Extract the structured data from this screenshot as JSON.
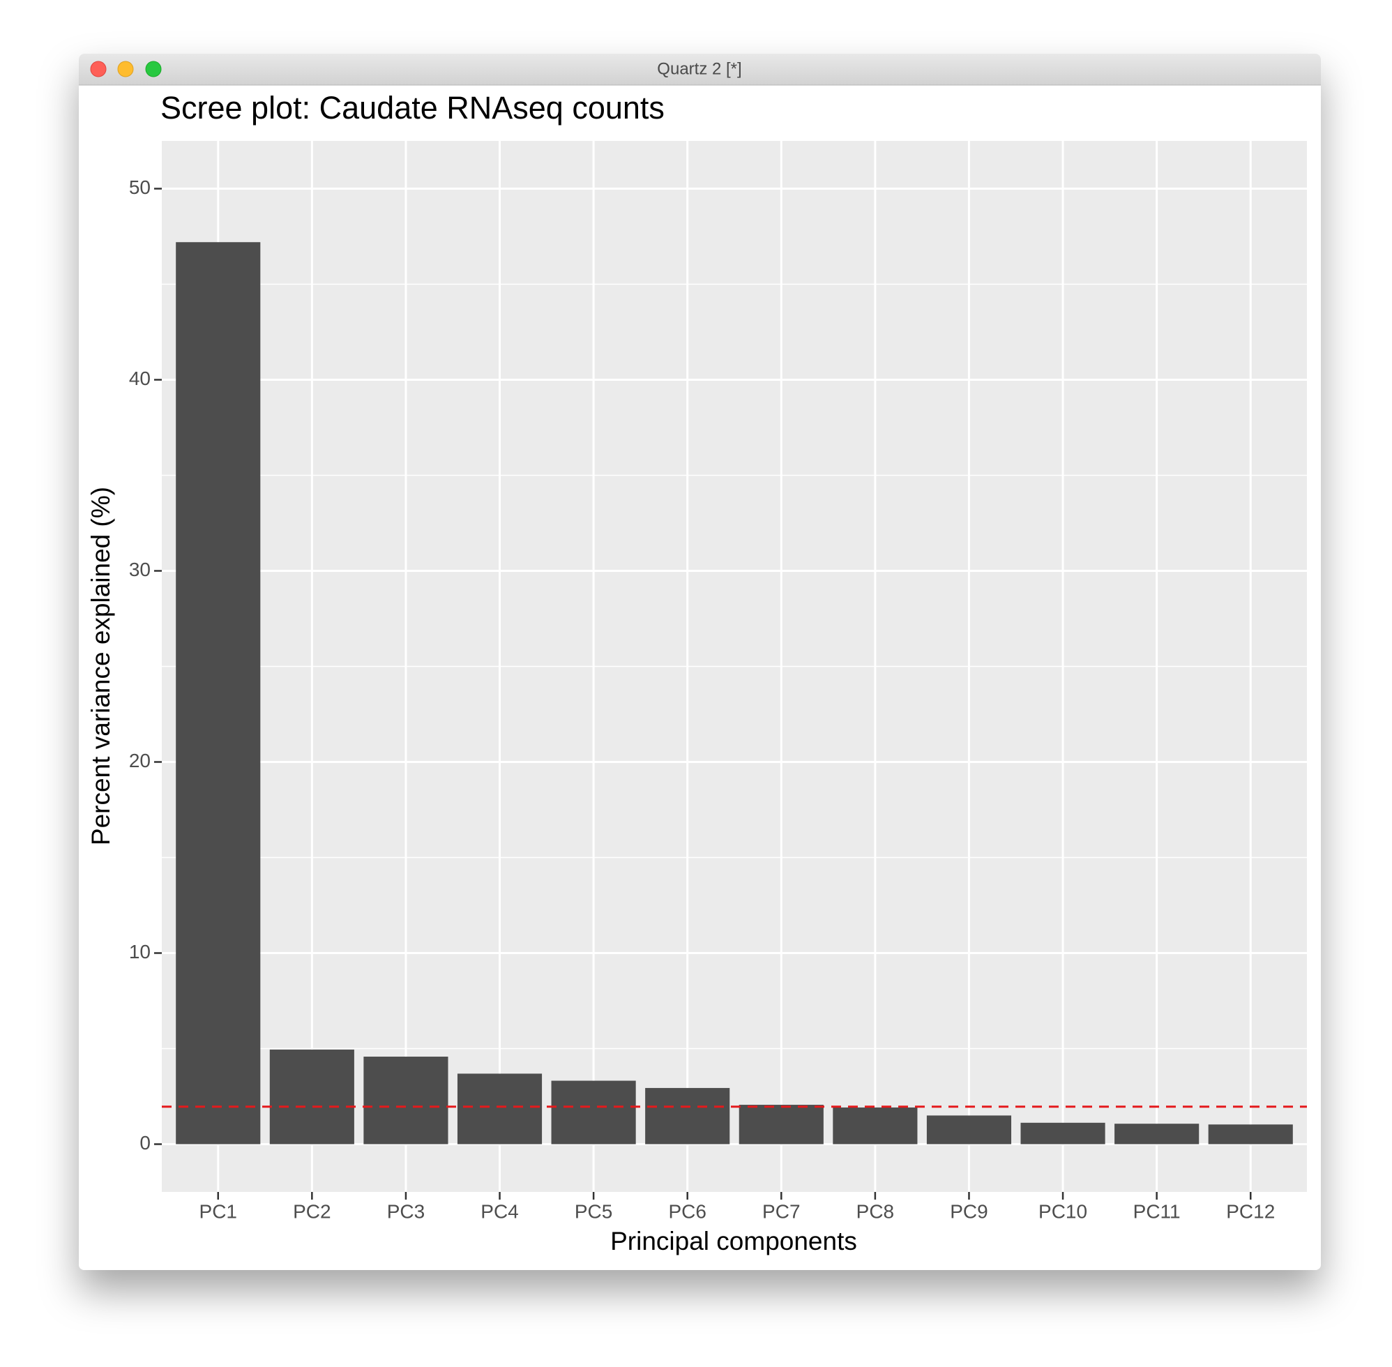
{
  "window": {
    "title": "Quartz 2 [*]"
  },
  "chart_data": {
    "type": "bar",
    "title": "Scree plot: Caudate RNAseq counts",
    "x_label": "Principal components",
    "y_label": "Percent variance explained (%)",
    "categories": [
      "PC1",
      "PC2",
      "PC3",
      "PC4",
      "PC5",
      "PC6",
      "PC7",
      "PC8",
      "PC9",
      "PC10",
      "PC11",
      "PC12"
    ],
    "values": [
      47.2,
      4.95,
      4.58,
      3.69,
      3.32,
      2.94,
      2.06,
      1.92,
      1.5,
      1.12,
      1.07,
      1.03
    ],
    "color": "#4d4d4d",
    "ylim": [
      -2.5,
      52.5
    ],
    "yticks": [
      0,
      10,
      20,
      30,
      40,
      50
    ],
    "minor_yticks": [
      5,
      15,
      25,
      35,
      45
    ],
    "grid": true,
    "hline": 1.96,
    "hline_color": "#e41a1c"
  }
}
